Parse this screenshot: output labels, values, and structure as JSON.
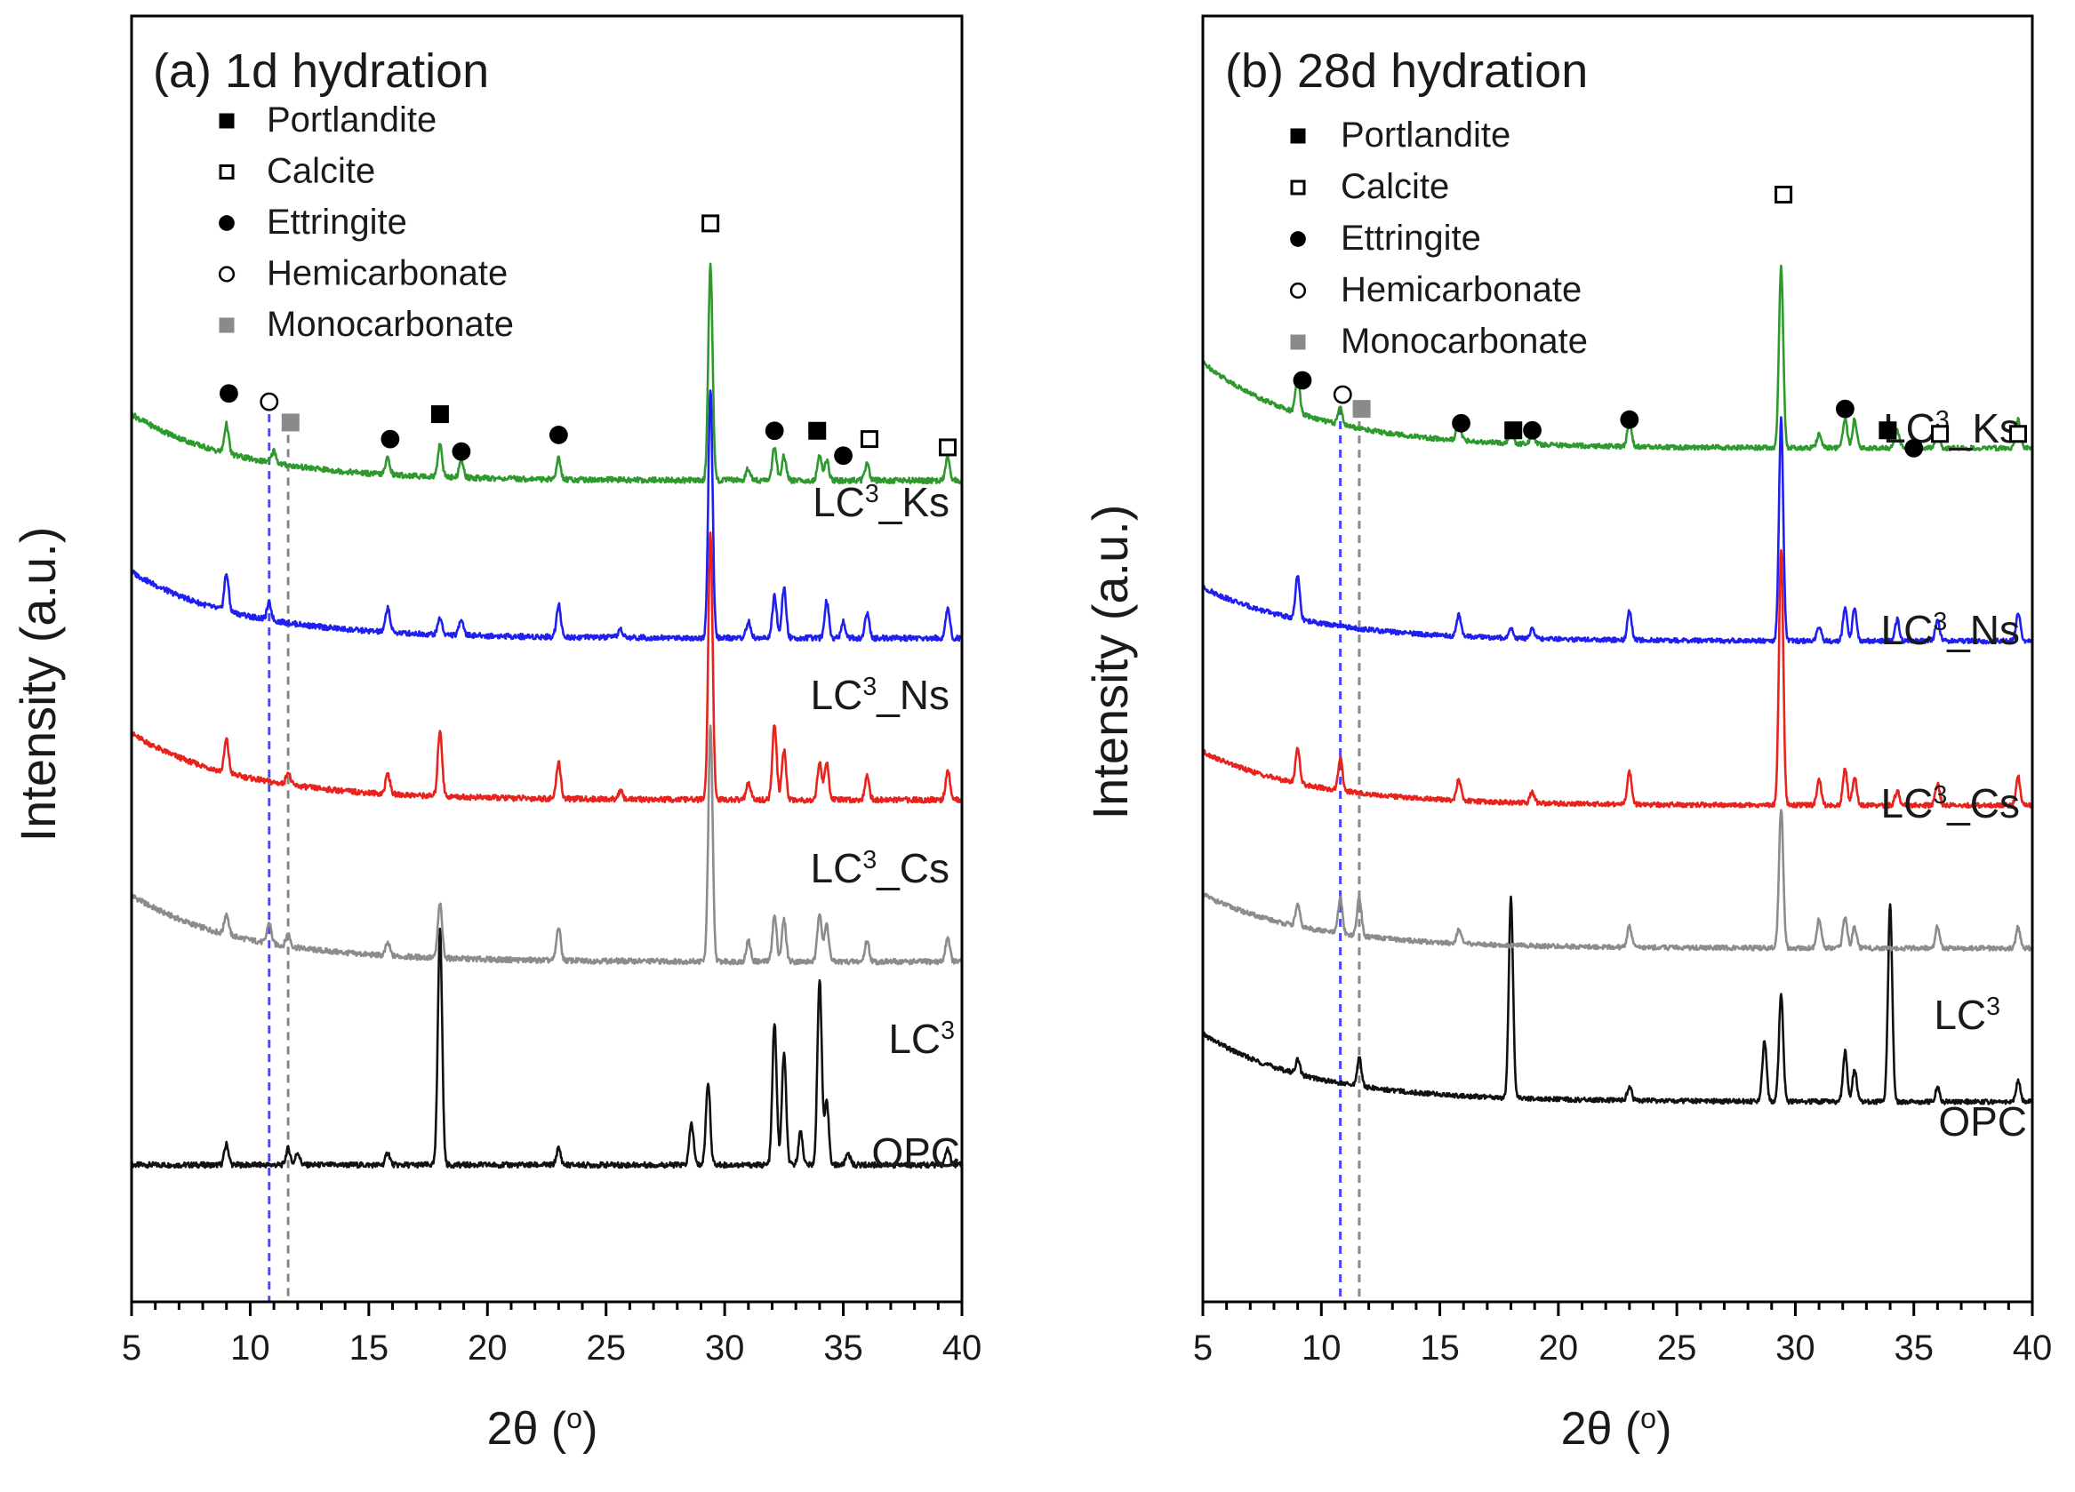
{
  "colors": {
    "OPC": "#111111",
    "LC3": "#8c8c8c",
    "LC3_Cs": "#e8231e",
    "LC3_Ns": "#1f1ff0",
    "LC3_Ks": "#2e9a2e",
    "hemi_line": "#4a4af5",
    "mono_line": "#888888",
    "monocarbonate_marker": "#8a8a8a"
  },
  "legend_items": [
    {
      "label": "Portlandite",
      "marker": "square-filled"
    },
    {
      "label": "Calcite",
      "marker": "square-open"
    },
    {
      "label": "Ettringite",
      "marker": "circle-filled"
    },
    {
      "label": "Hemicarbonate",
      "marker": "circle-open"
    },
    {
      "label": "Monocarbonate",
      "marker": "square-gray"
    }
  ],
  "chart_data": [
    {
      "type": "line",
      "title": "(a) 1d hydration",
      "xlabel_main": "2θ (",
      "xlabel_sup": "o",
      "xlabel_end": ")",
      "ylabel": "Intensity (a.u.)",
      "xlim": [
        5,
        40
      ],
      "xticks": [
        "5",
        "10",
        "15",
        "20",
        "25",
        "30",
        "35",
        "40"
      ],
      "reference_lines": [
        10.8,
        11.6
      ],
      "series": [
        {
          "key": "OPC",
          "label_main": "OPC",
          "label_sup": "",
          "label_end": "",
          "baseline": 0.8,
          "slope": 0.0,
          "peaks": [
            [
              9.0,
              0.5
            ],
            [
              11.6,
              0.4
            ],
            [
              12.0,
              0.3
            ],
            [
              15.8,
              0.3
            ],
            [
              18.0,
              5.7
            ],
            [
              23.0,
              0.4
            ],
            [
              28.6,
              1.0
            ],
            [
              29.3,
              2.0
            ],
            [
              32.1,
              3.4
            ],
            [
              32.5,
              2.7
            ],
            [
              33.2,
              0.8
            ],
            [
              34.0,
              4.5
            ],
            [
              34.3,
              1.5
            ],
            [
              35.2,
              0.3
            ],
            [
              39.4,
              0.4
            ]
          ]
        },
        {
          "key": "LC3",
          "label_main": "LC",
          "label_sup": "3",
          "label_end": "",
          "baseline": 5.7,
          "slope": 1.6,
          "peaks": [
            [
              9.0,
              0.5
            ],
            [
              10.8,
              0.5
            ],
            [
              11.6,
              0.3
            ],
            [
              15.8,
              0.3
            ],
            [
              18.0,
              1.3
            ],
            [
              23.0,
              0.8
            ],
            [
              29.4,
              5.7
            ],
            [
              31.0,
              0.5
            ],
            [
              32.1,
              1.1
            ],
            [
              32.5,
              1.0
            ],
            [
              34.0,
              1.2
            ],
            [
              34.3,
              0.9
            ],
            [
              36.0,
              0.5
            ],
            [
              39.4,
              0.6
            ]
          ]
        },
        {
          "key": "LC3_Cs",
          "label_main": "LC",
          "label_sup": "3",
          "label_end": "_Cs",
          "baseline": 9.6,
          "slope": 1.6,
          "peaks": [
            [
              9.0,
              0.8
            ],
            [
              11.6,
              0.3
            ],
            [
              15.8,
              0.5
            ],
            [
              18.0,
              1.6
            ],
            [
              23.0,
              0.9
            ],
            [
              25.6,
              0.2
            ],
            [
              29.4,
              6.5
            ],
            [
              31.0,
              0.4
            ],
            [
              32.1,
              1.8
            ],
            [
              32.5,
              1.2
            ],
            [
              34.0,
              0.9
            ],
            [
              34.3,
              0.9
            ],
            [
              36.0,
              0.6
            ],
            [
              39.4,
              0.7
            ]
          ]
        },
        {
          "key": "LC3_Ns",
          "label_main": "LC",
          "label_sup": "3",
          "label_end": "_Ns",
          "baseline": 13.5,
          "slope": 1.6,
          "peaks": [
            [
              9.0,
              0.9
            ],
            [
              10.8,
              0.4
            ],
            [
              15.8,
              0.6
            ],
            [
              18.0,
              0.4
            ],
            [
              18.9,
              0.4
            ],
            [
              23.0,
              0.8
            ],
            [
              25.6,
              0.2
            ],
            [
              29.4,
              6.0
            ],
            [
              31.0,
              0.4
            ],
            [
              32.1,
              1.0
            ],
            [
              32.5,
              1.2
            ],
            [
              34.3,
              0.9
            ],
            [
              35.0,
              0.4
            ],
            [
              36.0,
              0.6
            ],
            [
              39.4,
              0.7
            ]
          ]
        },
        {
          "key": "LC3_Ks",
          "label_main": "LC",
          "label_sup": "3",
          "label_end": "_Ks",
          "baseline": 17.3,
          "slope": 1.6,
          "peaks": [
            [
              9.0,
              0.7
            ],
            [
              11.0,
              0.3
            ],
            [
              15.8,
              0.4
            ],
            [
              18.0,
              0.8
            ],
            [
              18.9,
              0.4
            ],
            [
              23.0,
              0.5
            ],
            [
              29.4,
              5.2
            ],
            [
              31.0,
              0.3
            ],
            [
              32.1,
              0.8
            ],
            [
              32.5,
              0.6
            ],
            [
              34.0,
              0.6
            ],
            [
              34.3,
              0.5
            ],
            [
              36.0,
              0.4
            ],
            [
              39.4,
              0.6
            ]
          ]
        }
      ],
      "phase_markers": [
        {
          "x": 9.1,
          "y": 19.4,
          "phase": "Ettringite"
        },
        {
          "x": 10.8,
          "y": 19.2,
          "phase": "Hemicarbonate"
        },
        {
          "x": 11.7,
          "y": 18.7,
          "phase": "Monocarbonate"
        },
        {
          "x": 15.9,
          "y": 18.3,
          "phase": "Ettringite"
        },
        {
          "x": 18.0,
          "y": 18.9,
          "phase": "Portlandite"
        },
        {
          "x": 18.9,
          "y": 18.0,
          "phase": "Ettringite"
        },
        {
          "x": 23.0,
          "y": 18.4,
          "phase": "Ettringite"
        },
        {
          "x": 29.4,
          "y": 23.5,
          "phase": "Calcite"
        },
        {
          "x": 32.1,
          "y": 18.5,
          "phase": "Ettringite"
        },
        {
          "x": 33.9,
          "y": 18.5,
          "phase": "Portlandite"
        },
        {
          "x": 35.0,
          "y": 17.9,
          "phase": "Ettringite"
        },
        {
          "x": 36.1,
          "y": 18.3,
          "phase": "Calcite"
        },
        {
          "x": 39.4,
          "y": 18.1,
          "phase": "Calcite"
        }
      ],
      "ylim": [
        -2.5,
        28.5
      ]
    },
    {
      "type": "line",
      "title": "(b) 28d hydration",
      "xlabel_main": "2θ (",
      "xlabel_sup": "o",
      "xlabel_end": ")",
      "ylabel": "Intensity (a.u.)",
      "xlim": [
        5,
        40
      ],
      "xticks": [
        "5",
        "10",
        "15",
        "20",
        "25",
        "30",
        "35",
        "40"
      ],
      "reference_lines": [
        10.8,
        11.6
      ],
      "series": [
        {
          "key": "OPC",
          "label_main": "OPC",
          "label_sup": "",
          "label_end": "",
          "baseline": 3.1,
          "slope": 1.9,
          "peaks": [
            [
              9.0,
              0.4
            ],
            [
              11.6,
              0.8
            ],
            [
              18.0,
              5.6
            ],
            [
              23.0,
              0.4
            ],
            [
              28.7,
              1.7
            ],
            [
              29.4,
              3.0
            ],
            [
              32.1,
              1.4
            ],
            [
              32.5,
              0.9
            ],
            [
              34.0,
              5.5
            ],
            [
              36.0,
              0.4
            ],
            [
              39.4,
              0.6
            ]
          ]
        },
        {
          "key": "LC3",
          "label_main": "LC",
          "label_sup": "3",
          "label_end": "",
          "baseline": 7.4,
          "slope": 1.5,
          "peaks": [
            [
              9.0,
              0.6
            ],
            [
              10.8,
              1.0
            ],
            [
              11.6,
              1.1
            ],
            [
              15.8,
              0.4
            ],
            [
              23.0,
              0.6
            ],
            [
              29.4,
              3.9
            ],
            [
              31.0,
              0.8
            ],
            [
              32.1,
              0.9
            ],
            [
              32.5,
              0.6
            ],
            [
              36.0,
              0.6
            ],
            [
              39.4,
              0.6
            ]
          ]
        },
        {
          "key": "LC3_Cs",
          "label_main": "LC",
          "label_sup": "3",
          "label_end": "_Cs",
          "baseline": 11.4,
          "slope": 1.5,
          "peaks": [
            [
              9.0,
              1.0
            ],
            [
              10.8,
              0.9
            ],
            [
              15.8,
              0.6
            ],
            [
              18.9,
              0.3
            ],
            [
              23.0,
              0.9
            ],
            [
              29.4,
              7.2
            ],
            [
              31.0,
              0.7
            ],
            [
              32.1,
              1.0
            ],
            [
              32.5,
              0.8
            ],
            [
              34.3,
              0.4
            ],
            [
              36.0,
              0.6
            ],
            [
              39.4,
              0.8
            ]
          ]
        },
        {
          "key": "LC3_Ns",
          "label_main": "LC",
          "label_sup": "3",
          "label_end": "_Ns",
          "baseline": 16.0,
          "slope": 1.5,
          "peaks": [
            [
              9.0,
              1.2
            ],
            [
              15.8,
              0.6
            ],
            [
              18.0,
              0.3
            ],
            [
              18.9,
              0.3
            ],
            [
              23.0,
              0.8
            ],
            [
              29.4,
              6.2
            ],
            [
              31.0,
              0.4
            ],
            [
              32.1,
              0.9
            ],
            [
              32.5,
              0.9
            ],
            [
              34.3,
              0.6
            ],
            [
              36.0,
              0.6
            ],
            [
              39.4,
              0.8
            ]
          ]
        },
        {
          "key": "LC3_Ks",
          "label_main": "LC",
          "label_sup": "3",
          "label_end": "_Ks",
          "baseline": 21.4,
          "slope": 2.4,
          "peaks": [
            [
              9.0,
              1.0
            ],
            [
              10.8,
              0.5
            ],
            [
              15.8,
              0.6
            ],
            [
              18.0,
              0.3
            ],
            [
              18.9,
              0.3
            ],
            [
              23.0,
              0.7
            ],
            [
              29.4,
              5.1
            ],
            [
              31.0,
              0.4
            ],
            [
              32.1,
              0.8
            ],
            [
              32.5,
              0.8
            ],
            [
              34.3,
              0.5
            ],
            [
              36.0,
              0.5
            ],
            [
              39.4,
              0.8
            ]
          ]
        }
      ],
      "phase_markers": [
        {
          "x": 9.2,
          "y": 23.3,
          "phase": "Ettringite"
        },
        {
          "x": 10.9,
          "y": 22.9,
          "phase": "Hemicarbonate"
        },
        {
          "x": 11.7,
          "y": 22.5,
          "phase": "Monocarbonate"
        },
        {
          "x": 15.9,
          "y": 22.1,
          "phase": "Ettringite"
        },
        {
          "x": 18.1,
          "y": 21.9,
          "phase": "Portlandite"
        },
        {
          "x": 18.9,
          "y": 21.9,
          "phase": "Ettringite"
        },
        {
          "x": 23.0,
          "y": 22.2,
          "phase": "Ettringite"
        },
        {
          "x": 29.5,
          "y": 28.5,
          "phase": "Calcite"
        },
        {
          "x": 32.1,
          "y": 22.5,
          "phase": "Ettringite"
        },
        {
          "x": 33.9,
          "y": 21.9,
          "phase": "Portlandite"
        },
        {
          "x": 35.0,
          "y": 21.4,
          "phase": "Ettringite"
        },
        {
          "x": 36.1,
          "y": 21.8,
          "phase": "Calcite"
        },
        {
          "x": 39.4,
          "y": 21.8,
          "phase": "Calcite"
        }
      ],
      "ylim": [
        -2.5,
        33.5
      ]
    }
  ]
}
